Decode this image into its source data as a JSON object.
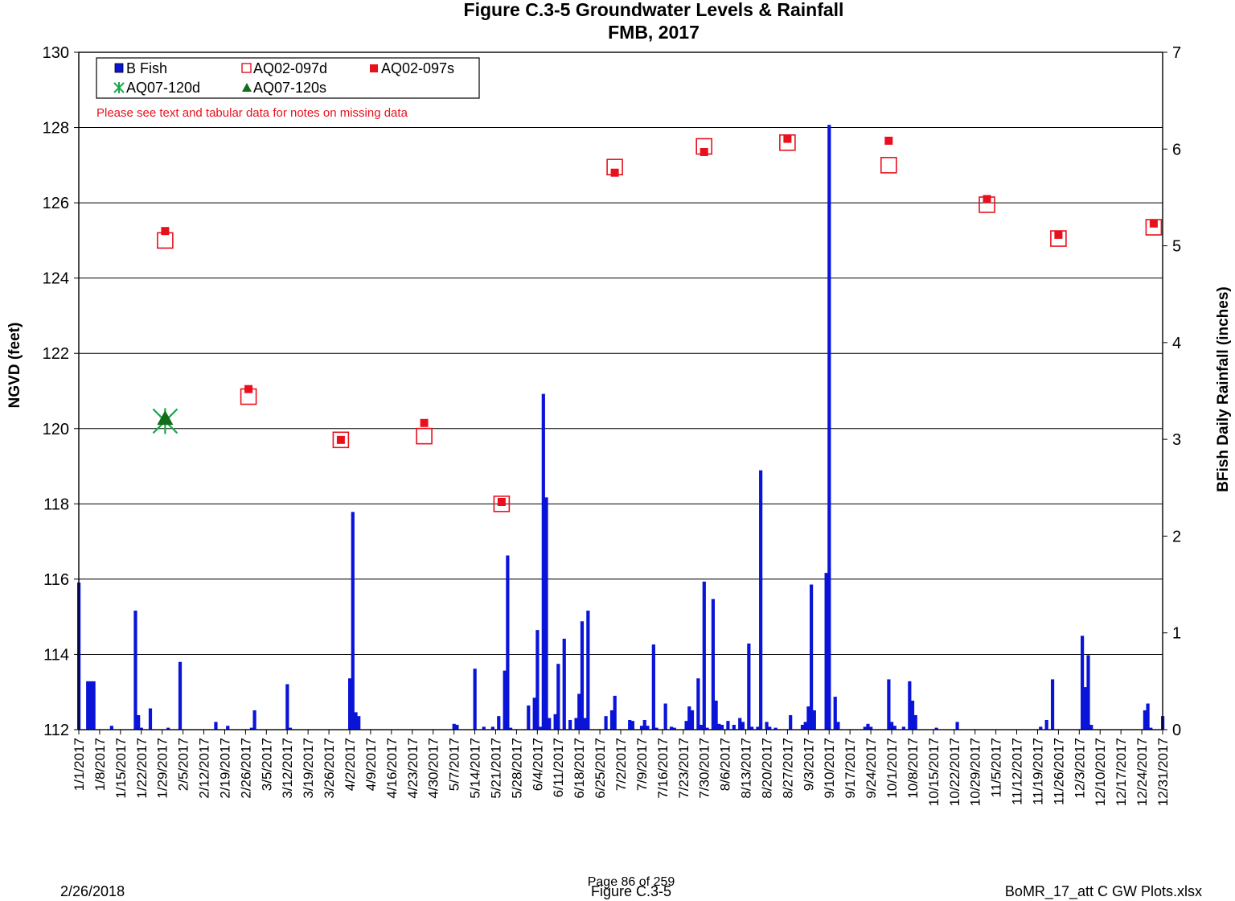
{
  "footer": {
    "date": "2/26/2018",
    "page": "Page 86 of 259",
    "figure": "Figure C.3-5",
    "file": "BoMR_17_att C GW Plots.xlsx"
  },
  "chart_data": {
    "type": "bar",
    "title": "Figure C.3-5 Groundwater Levels & Rainfall",
    "subtitle": "FMB, 2017",
    "ylabel_left": "NGVD (feet)",
    "ylabel_right": "BFish Daily Rainfall (inches)",
    "ylim_left": [
      112,
      130
    ],
    "ylim_right": [
      0,
      7
    ],
    "y_ticks_left": [
      112,
      114,
      116,
      118,
      120,
      122,
      124,
      126,
      128,
      130
    ],
    "y_ticks_right": [
      0,
      1,
      2,
      3,
      4,
      5,
      6,
      7
    ],
    "x_axis_start": "2017-01-01",
    "x_axis_end": "2017-12-31",
    "x_tick_labels": [
      "1/1/2017",
      "1/8/2017",
      "1/15/2017",
      "1/22/2017",
      "1/29/2017",
      "2/5/2017",
      "2/12/2017",
      "2/19/2017",
      "2/26/2017",
      "3/5/2017",
      "3/12/2017",
      "3/19/2017",
      "3/26/2017",
      "4/2/2017",
      "4/9/2017",
      "4/16/2017",
      "4/23/2017",
      "4/30/2017",
      "5/7/2017",
      "5/14/2017",
      "5/21/2017",
      "5/28/2017",
      "6/4/2017",
      "6/11/2017",
      "6/18/2017",
      "6/25/2017",
      "7/2/2017",
      "7/9/2017",
      "7/16/2017",
      "7/23/2017",
      "7/30/2017",
      "8/6/2017",
      "8/13/2017",
      "8/20/2017",
      "8/27/2017",
      "9/3/2017",
      "9/10/2017",
      "9/17/2017",
      "9/24/2017",
      "10/1/2017",
      "10/8/2017",
      "10/15/2017",
      "10/22/2017",
      "10/29/2017",
      "11/5/2017",
      "11/12/2017",
      "11/19/2017",
      "11/26/2017",
      "12/3/2017",
      "12/10/2017",
      "12/17/2017",
      "12/24/2017",
      "12/31/2017"
    ],
    "grid": true,
    "legend_position": "top-left",
    "note": "Please see text and tabular data for notes on missing data",
    "colors": {
      "bfish": "#0a14d8",
      "aq02_097d": "#e8101c",
      "aq02_097s": "#e8101c",
      "aq07_120d": "#1aa84a",
      "aq07_120s": "#116e1a"
    },
    "series": [
      {
        "name": "B Fish",
        "key": "bfish",
        "axis": "right",
        "marker": "bar",
        "points": [
          {
            "date": "2017-01-01",
            "value": 1.52
          },
          {
            "date": "2017-01-04",
            "value": 0.5
          },
          {
            "date": "2017-01-05",
            "value": 0.5
          },
          {
            "date": "2017-01-06",
            "value": 0.5
          },
          {
            "date": "2017-01-12",
            "value": 0.04
          },
          {
            "date": "2017-01-20",
            "value": 1.23
          },
          {
            "date": "2017-01-21",
            "value": 0.15
          },
          {
            "date": "2017-01-22",
            "value": 0.02
          },
          {
            "date": "2017-01-25",
            "value": 0.22
          },
          {
            "date": "2017-01-31",
            "value": 0.02
          },
          {
            "date": "2017-02-04",
            "value": 0.7
          },
          {
            "date": "2017-02-16",
            "value": 0.08
          },
          {
            "date": "2017-02-20",
            "value": 0.04
          },
          {
            "date": "2017-02-28",
            "value": 0.02
          },
          {
            "date": "2017-03-01",
            "value": 0.2
          },
          {
            "date": "2017-03-12",
            "value": 0.47
          },
          {
            "date": "2017-03-13",
            "value": 0.02
          },
          {
            "date": "2017-04-02",
            "value": 0.53
          },
          {
            "date": "2017-04-03",
            "value": 2.25
          },
          {
            "date": "2017-04-04",
            "value": 0.18
          },
          {
            "date": "2017-04-05",
            "value": 0.14
          },
          {
            "date": "2017-05-07",
            "value": 0.06
          },
          {
            "date": "2017-05-08",
            "value": 0.05
          },
          {
            "date": "2017-05-14",
            "value": 0.63
          },
          {
            "date": "2017-05-17",
            "value": 0.03
          },
          {
            "date": "2017-05-20",
            "value": 0.03
          },
          {
            "date": "2017-05-22",
            "value": 0.14
          },
          {
            "date": "2017-05-24",
            "value": 0.61
          },
          {
            "date": "2017-05-25",
            "value": 1.8
          },
          {
            "date": "2017-05-26",
            "value": 0.02
          },
          {
            "date": "2017-06-01",
            "value": 0.25
          },
          {
            "date": "2017-06-03",
            "value": 0.33
          },
          {
            "date": "2017-06-04",
            "value": 1.03
          },
          {
            "date": "2017-06-05",
            "value": 0.03
          },
          {
            "date": "2017-06-06",
            "value": 3.47
          },
          {
            "date": "2017-06-07",
            "value": 2.4
          },
          {
            "date": "2017-06-08",
            "value": 0.12
          },
          {
            "date": "2017-06-10",
            "value": 0.16
          },
          {
            "date": "2017-06-11",
            "value": 0.68
          },
          {
            "date": "2017-06-13",
            "value": 0.94
          },
          {
            "date": "2017-06-15",
            "value": 0.1
          },
          {
            "date": "2017-06-17",
            "value": 0.12
          },
          {
            "date": "2017-06-18",
            "value": 0.37
          },
          {
            "date": "2017-06-19",
            "value": 1.12
          },
          {
            "date": "2017-06-20",
            "value": 0.12
          },
          {
            "date": "2017-06-21",
            "value": 1.23
          },
          {
            "date": "2017-06-27",
            "value": 0.14
          },
          {
            "date": "2017-06-29",
            "value": 0.2
          },
          {
            "date": "2017-06-30",
            "value": 0.35
          },
          {
            "date": "2017-07-05",
            "value": 0.1
          },
          {
            "date": "2017-07-06",
            "value": 0.09
          },
          {
            "date": "2017-07-09",
            "value": 0.04
          },
          {
            "date": "2017-07-10",
            "value": 0.1
          },
          {
            "date": "2017-07-11",
            "value": 0.04
          },
          {
            "date": "2017-07-13",
            "value": 0.88
          },
          {
            "date": "2017-07-14",
            "value": 0.02
          },
          {
            "date": "2017-07-17",
            "value": 0.27
          },
          {
            "date": "2017-07-19",
            "value": 0.03
          },
          {
            "date": "2017-07-20",
            "value": 0.02
          },
          {
            "date": "2017-07-24",
            "value": 0.09
          },
          {
            "date": "2017-07-25",
            "value": 0.24
          },
          {
            "date": "2017-07-26",
            "value": 0.2
          },
          {
            "date": "2017-07-28",
            "value": 0.53
          },
          {
            "date": "2017-07-29",
            "value": 0.05
          },
          {
            "date": "2017-07-30",
            "value": 1.53
          },
          {
            "date": "2017-07-31",
            "value": 0.02
          },
          {
            "date": "2017-08-02",
            "value": 1.35
          },
          {
            "date": "2017-08-03",
            "value": 0.3
          },
          {
            "date": "2017-08-04",
            "value": 0.06
          },
          {
            "date": "2017-08-05",
            "value": 0.05
          },
          {
            "date": "2017-08-07",
            "value": 0.09
          },
          {
            "date": "2017-08-09",
            "value": 0.05
          },
          {
            "date": "2017-08-11",
            "value": 0.12
          },
          {
            "date": "2017-08-12",
            "value": 0.08
          },
          {
            "date": "2017-08-14",
            "value": 0.89
          },
          {
            "date": "2017-08-15",
            "value": 0.03
          },
          {
            "date": "2017-08-17",
            "value": 0.03
          },
          {
            "date": "2017-08-18",
            "value": 2.68
          },
          {
            "date": "2017-08-20",
            "value": 0.08
          },
          {
            "date": "2017-08-21",
            "value": 0.03
          },
          {
            "date": "2017-08-23",
            "value": 0.02
          },
          {
            "date": "2017-08-28",
            "value": 0.15
          },
          {
            "date": "2017-09-01",
            "value": 0.05
          },
          {
            "date": "2017-09-02",
            "value": 0.08
          },
          {
            "date": "2017-09-03",
            "value": 0.24
          },
          {
            "date": "2017-09-04",
            "value": 1.5
          },
          {
            "date": "2017-09-05",
            "value": 0.2
          },
          {
            "date": "2017-09-09",
            "value": 1.62
          },
          {
            "date": "2017-09-10",
            "value": 6.25
          },
          {
            "date": "2017-09-12",
            "value": 0.34
          },
          {
            "date": "2017-09-13",
            "value": 0.08
          },
          {
            "date": "2017-09-22",
            "value": 0.03
          },
          {
            "date": "2017-09-23",
            "value": 0.06
          },
          {
            "date": "2017-09-24",
            "value": 0.03
          },
          {
            "date": "2017-09-30",
            "value": 0.52
          },
          {
            "date": "2017-10-01",
            "value": 0.08
          },
          {
            "date": "2017-10-02",
            "value": 0.04
          },
          {
            "date": "2017-10-05",
            "value": 0.03
          },
          {
            "date": "2017-10-07",
            "value": 0.5
          },
          {
            "date": "2017-10-08",
            "value": 0.3
          },
          {
            "date": "2017-10-09",
            "value": 0.15
          },
          {
            "date": "2017-10-16",
            "value": 0.02
          },
          {
            "date": "2017-10-23",
            "value": 0.08
          },
          {
            "date": "2017-11-20",
            "value": 0.03
          },
          {
            "date": "2017-11-22",
            "value": 0.1
          },
          {
            "date": "2017-11-24",
            "value": 0.52
          },
          {
            "date": "2017-12-04",
            "value": 0.97
          },
          {
            "date": "2017-12-05",
            "value": 0.44
          },
          {
            "date": "2017-12-06",
            "value": 0.77
          },
          {
            "date": "2017-12-07",
            "value": 0.05
          },
          {
            "date": "2017-12-25",
            "value": 0.2
          },
          {
            "date": "2017-12-26",
            "value": 0.27
          },
          {
            "date": "2017-12-27",
            "value": 0.02
          },
          {
            "date": "2017-12-31",
            "value": 0.14
          }
        ]
      },
      {
        "name": "AQ02-097d",
        "key": "aq02_097d",
        "axis": "left",
        "marker": "open-square",
        "points": [
          {
            "date": "2017-01-30",
            "value": 125.0
          },
          {
            "date": "2017-02-27",
            "value": 120.85
          },
          {
            "date": "2017-03-30",
            "value": 119.7
          },
          {
            "date": "2017-04-27",
            "value": 119.8
          },
          {
            "date": "2017-05-23",
            "value": 118.0
          },
          {
            "date": "2017-06-30",
            "value": 126.95
          },
          {
            "date": "2017-07-30",
            "value": 127.5
          },
          {
            "date": "2017-08-27",
            "value": 127.6
          },
          {
            "date": "2017-09-30",
            "value": 127.0
          },
          {
            "date": "2017-11-02",
            "value": 125.95
          },
          {
            "date": "2017-11-26",
            "value": 125.05
          },
          {
            "date": "2017-12-28",
            "value": 125.35
          }
        ]
      },
      {
        "name": "AQ02-097s",
        "key": "aq02_097s",
        "axis": "left",
        "marker": "filled-square",
        "points": [
          {
            "date": "2017-01-30",
            "value": 125.25
          },
          {
            "date": "2017-02-27",
            "value": 121.05
          },
          {
            "date": "2017-03-30",
            "value": 119.7
          },
          {
            "date": "2017-04-27",
            "value": 120.15
          },
          {
            "date": "2017-05-23",
            "value": 118.05
          },
          {
            "date": "2017-06-30",
            "value": 126.8
          },
          {
            "date": "2017-07-30",
            "value": 127.35
          },
          {
            "date": "2017-08-27",
            "value": 127.7
          },
          {
            "date": "2017-09-30",
            "value": 127.65
          },
          {
            "date": "2017-11-02",
            "value": 126.1
          },
          {
            "date": "2017-11-26",
            "value": 125.15
          },
          {
            "date": "2017-12-28",
            "value": 125.45
          }
        ]
      },
      {
        "name": "AQ07-120d",
        "key": "aq07_120d",
        "axis": "left",
        "marker": "star",
        "points": [
          {
            "date": "2017-01-30",
            "value": 120.2
          }
        ]
      },
      {
        "name": "AQ07-120s",
        "key": "aq07_120s",
        "axis": "left",
        "marker": "triangle",
        "points": [
          {
            "date": "2017-01-30",
            "value": 120.25
          }
        ]
      }
    ]
  }
}
